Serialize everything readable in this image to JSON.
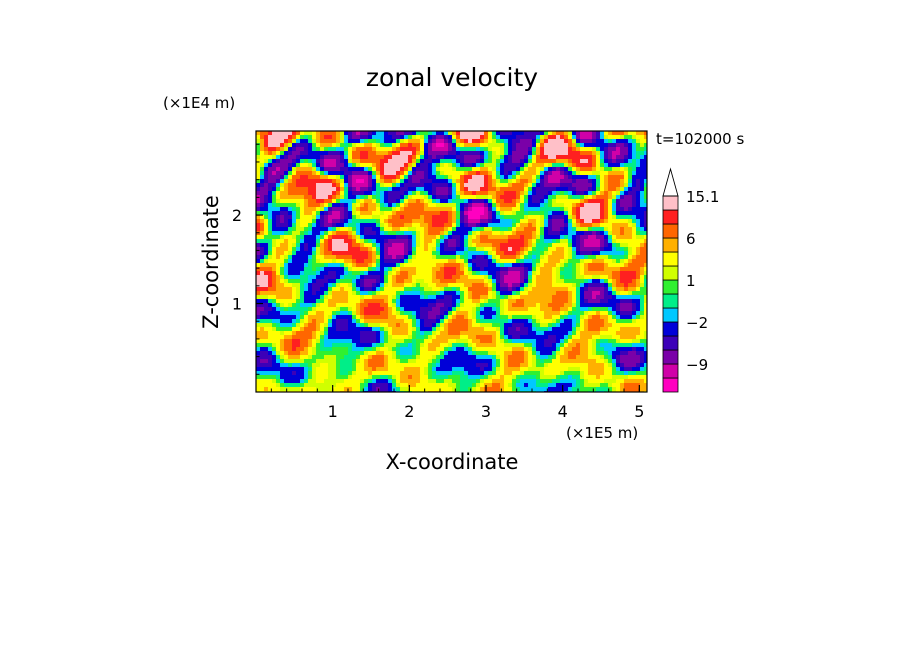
{
  "chart_data": {
    "type": "heatmap",
    "title": "zonal velocity",
    "xlabel": "X-coordinate",
    "ylabel": "Z-coordinate",
    "x_unit": "(×1E5 m)",
    "y_unit": "(×1E4 m)",
    "time_label": "t=102000 s",
    "xlim": [
      0.0,
      5.1
    ],
    "ylim": [
      0.0,
      2.95
    ],
    "x_ticks": [
      1,
      2,
      3,
      4,
      5
    ],
    "x_tick_labels": [
      "1",
      "2",
      "3",
      "4",
      "5"
    ],
    "y_ticks": [
      1,
      2
    ],
    "y_tick_labels": [
      "1",
      "2"
    ],
    "colorbar": {
      "levels": [
        -15.1,
        -12,
        -9,
        -6,
        -4,
        -2,
        -1,
        0,
        1,
        2,
        4,
        6,
        9,
        12,
        15.1
      ],
      "labels": [
        {
          "value": 15.1,
          "text": "15.1"
        },
        {
          "value": 6,
          "text": "6"
        },
        {
          "value": 1,
          "text": "1"
        },
        {
          "value": -2,
          "text": "−2"
        },
        {
          "value": -9,
          "text": "−9"
        }
      ],
      "colors": [
        "#ff00c0",
        "#d000a8",
        "#7a00a8",
        "#3c00b8",
        "#0000d8",
        "#00c8ff",
        "#00ee88",
        "#30f030",
        "#d0ff00",
        "#ffff00",
        "#ffb000",
        "#ff6600",
        "#ff2020",
        "#ffc0c8"
      ],
      "extend": "max"
    }
  }
}
